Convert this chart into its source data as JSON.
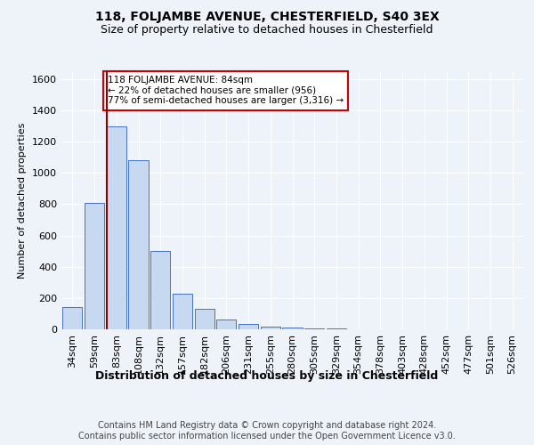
{
  "title1": "118, FOLJAMBE AVENUE, CHESTERFIELD, S40 3EX",
  "title2": "Size of property relative to detached houses in Chesterfield",
  "xlabel": "Distribution of detached houses by size in Chesterfield",
  "ylabel": "Number of detached properties",
  "categories": [
    "34sqm",
    "59sqm",
    "83sqm",
    "108sqm",
    "132sqm",
    "157sqm",
    "182sqm",
    "206sqm",
    "231sqm",
    "255sqm",
    "280sqm",
    "305sqm",
    "329sqm",
    "354sqm",
    "378sqm",
    "403sqm",
    "428sqm",
    "452sqm",
    "477sqm",
    "501sqm",
    "526sqm"
  ],
  "values": [
    140,
    810,
    1300,
    1080,
    500,
    230,
    130,
    65,
    35,
    18,
    10,
    6,
    3,
    2,
    1,
    1,
    0,
    0,
    0,
    0,
    0
  ],
  "bar_color": "#c6d9f0",
  "bar_edge_color": "#4472c4",
  "vline_color": "#8b0000",
  "annotation_text": "118 FOLJAMBE AVENUE: 84sqm\n← 22% of detached houses are smaller (956)\n77% of semi-detached houses are larger (3,316) →",
  "annotation_box_color": "#ffffff",
  "annotation_box_edge": "#cc0000",
  "footnote": "Contains HM Land Registry data © Crown copyright and database right 2024.\nContains public sector information licensed under the Open Government Licence v3.0.",
  "ylim": [
    0,
    1650
  ],
  "yticks": [
    0,
    200,
    400,
    600,
    800,
    1000,
    1200,
    1400,
    1600
  ],
  "background_color": "#eef2f9",
  "grid_color": "#ffffff",
  "title1_fontsize": 10,
  "title2_fontsize": 9,
  "xlabel_fontsize": 9,
  "ylabel_fontsize": 8,
  "tick_fontsize": 8,
  "annotation_fontsize": 7.5,
  "footnote_fontsize": 7,
  "vline_bar_index": 2
}
